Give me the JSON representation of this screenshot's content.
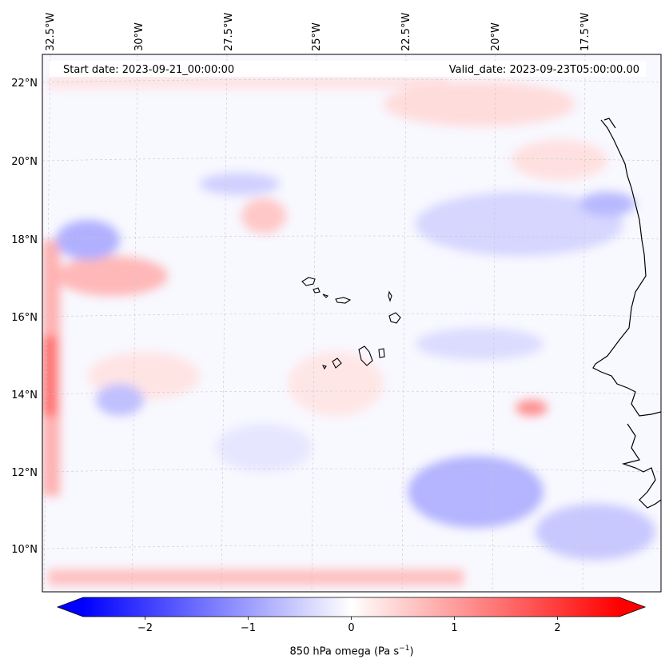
{
  "annotations": {
    "start_date": "Start date: 2023-09-21_00:00:00",
    "valid_date": "Valid_date: 2023-09-23T05:00:00.00"
  },
  "axes": {
    "top_lon_labels": [
      "32.5°W",
      "30°W",
      "27.5°W",
      "25°W",
      "22.5°W",
      "20°W",
      "17.5°W"
    ],
    "left_lat_labels": [
      "22°N",
      "20°N",
      "18°N",
      "16°N",
      "14°N",
      "12°N",
      "10°N"
    ]
  },
  "colorbar": {
    "label_text": "850 hPa omega (Pa s",
    "label_exponent": "−1",
    "label_close": ")",
    "tick_labels": [
      "−2",
      "−1",
      "0",
      "1",
      "2"
    ],
    "ticks": [
      -2,
      -1,
      0,
      1,
      2
    ],
    "range": [
      -2.6,
      2.6
    ],
    "extend": "both",
    "cmap": "bwr",
    "colors": {
      "low": "#0000ff",
      "mid": "#ffffff",
      "high": "#ff0000"
    }
  },
  "map": {
    "projection": "lambert",
    "extent_lon": [
      -32.6,
      -15.0
    ],
    "extent_lat": [
      8.8,
      22.8
    ],
    "gridlines": "dashed grey",
    "coastline_color": "#000000",
    "field": "850 hPa omega"
  }
}
